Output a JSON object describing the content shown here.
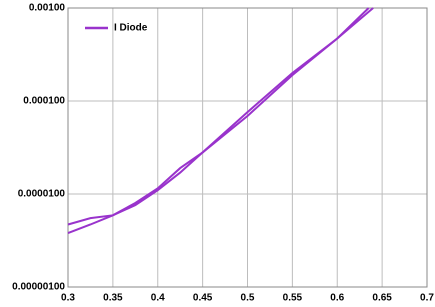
{
  "chart_data": {
    "type": "line",
    "log_y": true,
    "grid": true,
    "legend": "top-left",
    "xlim": [
      0.3,
      0.7
    ],
    "xticks": [
      0.3,
      0.35,
      0.4,
      0.45,
      0.5,
      0.55,
      0.6,
      0.65,
      0.7
    ],
    "ylim": [
      1e-06,
      0.001
    ],
    "yticks": [
      {
        "value": 1e-06,
        "label": "0.00000100"
      },
      {
        "value": 1e-05,
        "label": "0.0000100"
      },
      {
        "value": 0.0001,
        "label": "0.000100"
      },
      {
        "value": 0.001,
        "label": "0.00100"
      }
    ],
    "series": [
      {
        "name": "I Diode",
        "color": "#9933cc",
        "x": [
          0.3,
          0.325,
          0.35,
          0.375,
          0.4,
          0.425,
          0.45,
          0.5,
          0.55,
          0.6,
          0.635
        ],
        "values": [
          4.7e-06,
          5.5e-06,
          5.9e-06,
          7.6e-06,
          1.1e-05,
          1.7e-05,
          2.8e-05,
          6.9e-05,
          0.00019,
          0.00047,
          0.001
        ]
      },
      {
        "color": "#9933cc",
        "x": [
          0.3,
          0.325,
          0.35,
          0.375,
          0.4,
          0.425,
          0.45,
          0.5,
          0.55,
          0.6,
          0.64
        ],
        "values": [
          3.8e-06,
          4.7e-06,
          5.9e-06,
          8e-06,
          1.15e-05,
          1.9e-05,
          2.8e-05,
          7.6e-05,
          0.0002,
          0.00047,
          0.001
        ]
      }
    ]
  }
}
